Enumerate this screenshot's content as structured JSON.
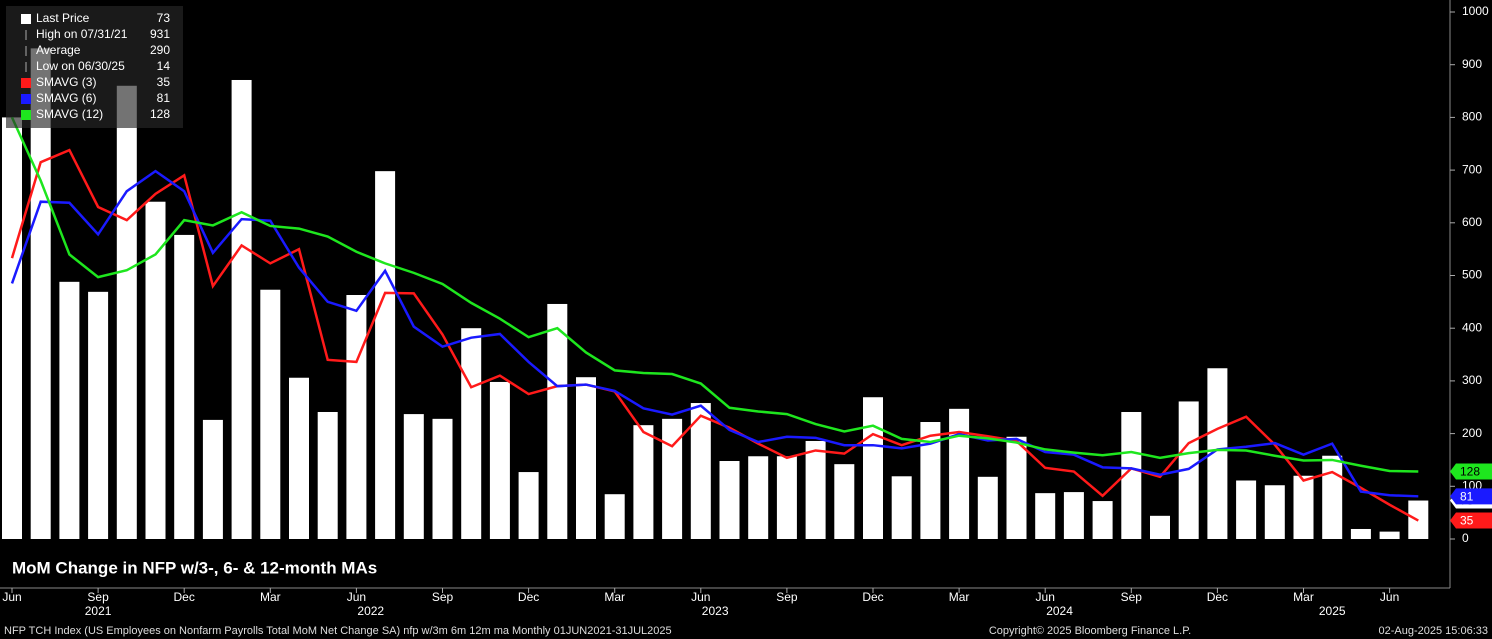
{
  "chart_data": {
    "type": "bar-line",
    "title": "MoM Change in NFP w/3-, 6- & 12-month MAs",
    "footer_left": "NFP TCH Index (US Employees on Nonfarm Payrolls Total MoM Net Change SA) nfp w/3m 6m 12m ma  Monthly 01JUN2021-31JUL2025",
    "footer_center": "Copyright© 2025 Bloomberg Finance L.P.",
    "footer_right": "02-Aug-2025 15:06:33",
    "x": [
      "2021-06",
      "2021-07",
      "2021-08",
      "2021-09",
      "2021-10",
      "2021-11",
      "2021-12",
      "2022-01",
      "2022-02",
      "2022-03",
      "2022-04",
      "2022-05",
      "2022-06",
      "2022-07",
      "2022-08",
      "2022-09",
      "2022-10",
      "2022-11",
      "2022-12",
      "2023-01",
      "2023-02",
      "2023-03",
      "2023-04",
      "2023-05",
      "2023-06",
      "2023-07",
      "2023-08",
      "2023-09",
      "2023-10",
      "2023-11",
      "2023-12",
      "2024-01",
      "2024-02",
      "2024-03",
      "2024-04",
      "2024-05",
      "2024-06",
      "2024-07",
      "2024-08",
      "2024-09",
      "2024-10",
      "2024-11",
      "2024-12",
      "2025-01",
      "2025-02",
      "2025-03",
      "2025-04",
      "2025-05",
      "2025-06",
      "2025-07"
    ],
    "xticks": [
      {
        "value": "2021-06",
        "label": "Jun"
      },
      {
        "value": "2021-09",
        "label": "Sep"
      },
      {
        "value": "2021-12",
        "label": "Dec"
      },
      {
        "value": "2022-03",
        "label": "Mar"
      },
      {
        "value": "2022-06",
        "label": "Jun"
      },
      {
        "value": "2022-09",
        "label": "Sep"
      },
      {
        "value": "2022-12",
        "label": "Dec"
      },
      {
        "value": "2023-03",
        "label": "Mar"
      },
      {
        "value": "2023-06",
        "label": "Jun"
      },
      {
        "value": "2023-09",
        "label": "Sep"
      },
      {
        "value": "2023-12",
        "label": "Dec"
      },
      {
        "value": "2024-03",
        "label": "Mar"
      },
      {
        "value": "2024-06",
        "label": "Jun"
      },
      {
        "value": "2024-09",
        "label": "Sep"
      },
      {
        "value": "2024-12",
        "label": "Dec"
      },
      {
        "value": "2025-03",
        "label": "Mar"
      },
      {
        "value": "2025-06",
        "label": "Jun"
      }
    ],
    "years": [
      "2021",
      "2022",
      "2023",
      "2024",
      "2025"
    ],
    "ylim": [
      -90,
      1010
    ],
    "yticks": [
      0,
      100,
      200,
      300,
      400,
      500,
      600,
      700,
      800,
      900,
      {
        "value": 1000,
        "label": "1000"
      }
    ],
    "series": [
      {
        "name": "Last Price",
        "kind": "bar",
        "color": "#ffffff",
        "values": [
          800,
          931,
          488,
          469,
          860,
          640,
          577,
          226,
          871,
          473,
          306,
          241,
          463,
          698,
          237,
          228,
          400,
          298,
          127,
          446,
          307,
          85,
          216,
          228,
          258,
          148,
          157,
          157,
          186,
          142,
          269,
          119,
          222,
          247,
          118,
          194,
          87,
          89,
          72,
          241,
          44,
          261,
          324,
          111,
          102,
          120,
          158,
          19,
          14,
          73
        ]
      },
      {
        "name": "SMAVG (3)",
        "kind": "line",
        "color": "#ff1a1a",
        "values": [
          533,
          715,
          738,
          630,
          605,
          655,
          690,
          480,
          557,
          523,
          550,
          340,
          336,
          467,
          466,
          388,
          288,
          310,
          275,
          290,
          293,
          280,
          203,
          176,
          234,
          211,
          181,
          154,
          168,
          162,
          199,
          178,
          196,
          203,
          195,
          186,
          135,
          128,
          82,
          134,
          118,
          182,
          209,
          232,
          179,
          111,
          127,
          97,
          65,
          35
        ]
      },
      {
        "name": "SMAVG (6)",
        "kind": "line",
        "color": "#1a1aff",
        "values": [
          485,
          640,
          638,
          578,
          660,
          698,
          660,
          543,
          607,
          604,
          515,
          450,
          433,
          509,
          403,
          365,
          382,
          389,
          336,
          290,
          293,
          281,
          248,
          236,
          253,
          207,
          184,
          194,
          192,
          178,
          178,
          172,
          181,
          199,
          187,
          190,
          165,
          160,
          136,
          134,
          122,
          133,
          170,
          175,
          182,
          160,
          181,
          90,
          83,
          81
        ]
      },
      {
        "name": "SMAVG (12)",
        "kind": "line",
        "color": "#1ee61e",
        "values": [
          800,
          680,
          540,
          497,
          510,
          540,
          605,
          595,
          620,
          594,
          589,
          574,
          545,
          523,
          505,
          484,
          448,
          418,
          383,
          400,
          354,
          320,
          315,
          313,
          295,
          249,
          242,
          237,
          218,
          204,
          215,
          190,
          184,
          196,
          191,
          183,
          170,
          164,
          159,
          165,
          154,
          163,
          169,
          168,
          158,
          149,
          150,
          139,
          129,
          128
        ]
      }
    ],
    "stats": [
      {
        "label": "High on 07/31/21",
        "value": 931
      },
      {
        "label": "Average",
        "value": 290
      },
      {
        "label": "Low on 06/30/25",
        "value": 14
      }
    ]
  }
}
